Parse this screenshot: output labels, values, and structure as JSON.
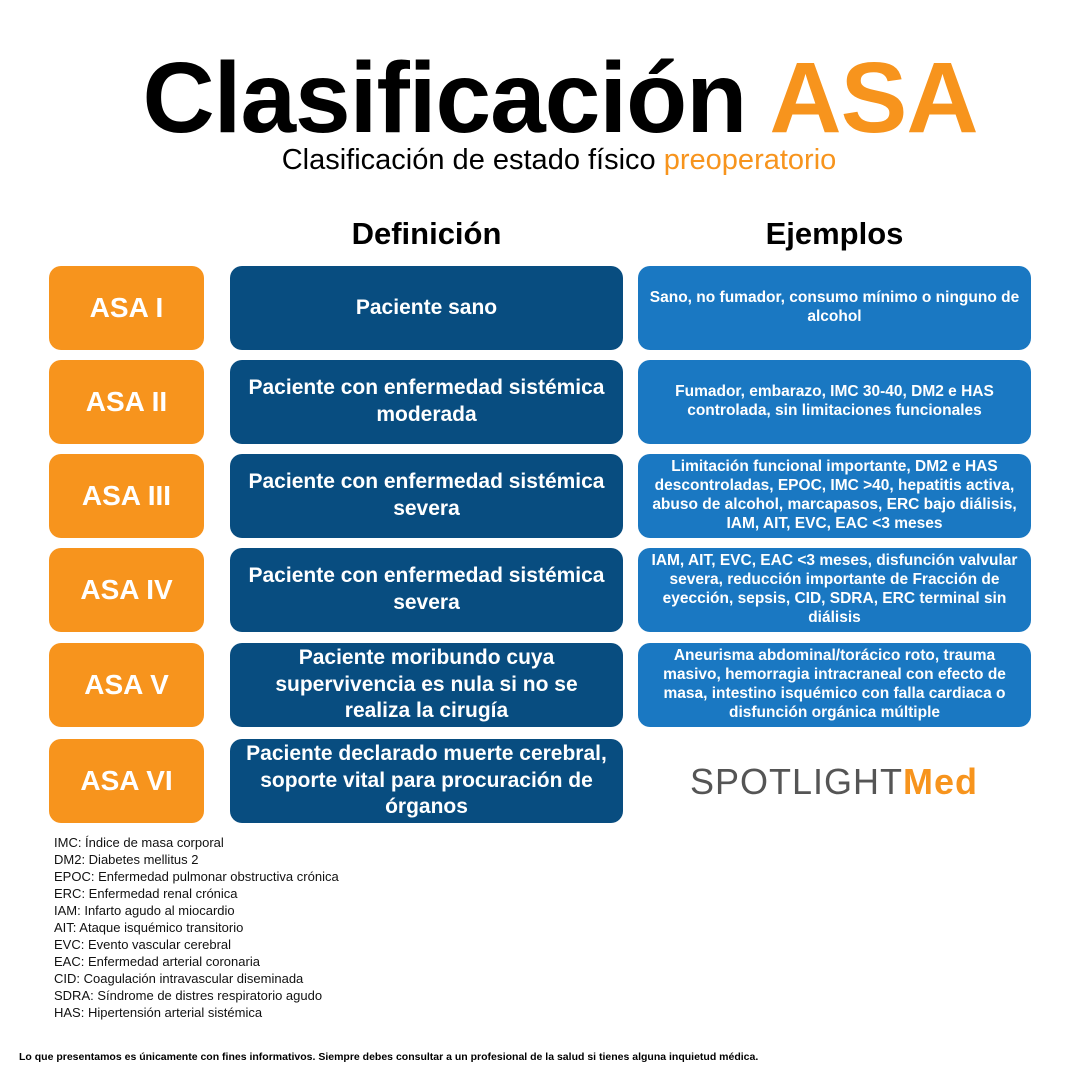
{
  "title": {
    "main": "Clasificación",
    "accent": "ASA"
  },
  "subtitle": {
    "main": "Clasificación de estado físico",
    "accent": "preoperatorio"
  },
  "headers": {
    "definition": "Definición",
    "examples": "Ejemplos"
  },
  "rows": [
    {
      "label": "ASA I",
      "definition": "Paciente sano",
      "examples": "Sano, no fumador, consumo mínimo o ninguno de alcohol"
    },
    {
      "label": "ASA II",
      "definition": "Paciente con enfermedad sistémica moderada",
      "examples": "Fumador, embarazo, IMC 30-40, DM2 e HAS controlada, sin limitaciones funcionales"
    },
    {
      "label": "ASA III",
      "definition": "Paciente con enfermedad sistémica severa",
      "examples": "Limitación funcional importante, DM2 e HAS descontroladas, EPOC, IMC >40, hepatitis activa, abuso de alcohol, marcapasos, ERC bajo diálisis, IAM, AIT, EVC, EAC  <3 meses"
    },
    {
      "label": "ASA IV",
      "definition": "Paciente con enfermedad sistémica severa",
      "examples": "IAM, AIT, EVC, EAC  <3 meses, disfunción valvular severa, reducción importante de Fracción de eyección, sepsis, CID, SDRA, ERC terminal sin diálisis"
    },
    {
      "label": "ASA V",
      "definition": "Paciente moribundo cuya supervivencia es nula si no se realiza la cirugía",
      "examples": "Aneurisma abdominal/torácico roto, trauma masivo, hemorragia intracraneal con efecto de masa, intestino isquémico con falla cardiaca o disfunción orgánica múltiple"
    },
    {
      "label": "ASA VI",
      "definition": "Paciente declarado muerte cerebral, soporte vital para procuración de órganos"
    }
  ],
  "logo": {
    "part1": "SPOTLIGHT",
    "part2": "Med"
  },
  "abbreviations": [
    "IMC: Índice de masa corporal",
    "DM2: Diabetes mellitus 2",
    "EPOC: Enfermedad pulmonar obstructiva crónica",
    "ERC: Enfermedad renal crónica",
    "IAM: Infarto agudo al miocardio",
    "AIT: Ataque isquémico transitorio",
    "EVC: Evento vascular cerebral",
    "EAC: Enfermedad arterial coronaria",
    "CID: Coagulación intravascular diseminada",
    "SDRA: Síndrome de distres respiratorio agudo",
    "HAS: Hipertensión arterial sistémica"
  ],
  "disclaimer": "Lo que presentamos es únicamente con fines informativos. Siempre debes consultar a un profesional de la salud si tienes alguna inquietud médica.",
  "colors": {
    "orange": "#f7941d",
    "dark_blue": "#084d80",
    "light_blue": "#1a78c2"
  }
}
